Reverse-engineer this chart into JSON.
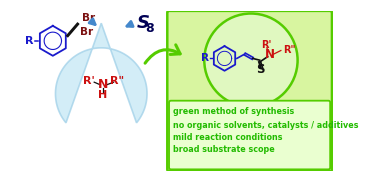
{
  "bg_color": "#ffffff",
  "water_drop_color": "#c5e8f5",
  "water_drop_edge_color": "#a0d0e8",
  "green_box_bg": "#d8f5a0",
  "green_box_edge": "#55cc00",
  "green_circle_color": "#55cc00",
  "bullet_texts": [
    "green method of synthesis",
    "no organic solvents, catalysts / additives",
    "mild reaction conditions",
    "broad substrate scope"
  ],
  "bullet_color": "#22bb00",
  "br_color": "#7b1010",
  "blue_color": "#1a1acc",
  "red_color": "#cc1010",
  "black_color": "#111111",
  "dark_navy": "#000055",
  "arrow_blue": "#4488cc",
  "green_arrow": "#55cc00"
}
